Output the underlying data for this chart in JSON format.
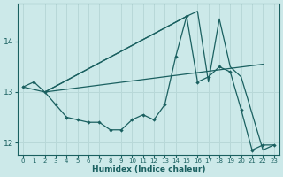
{
  "xlabel": "Humidex (Indice chaleur)",
  "background_color": "#cce9e9",
  "grid_color": "#b8d8d8",
  "line_color": "#1a6060",
  "xlim": [
    -0.5,
    23.5
  ],
  "ylim": [
    11.75,
    14.75
  ],
  "yticks": [
    12,
    13,
    14
  ],
  "xticks": [
    0,
    1,
    2,
    3,
    4,
    5,
    6,
    7,
    8,
    9,
    10,
    11,
    12,
    13,
    14,
    15,
    16,
    17,
    18,
    19,
    20,
    21,
    22,
    23
  ],
  "line1_x": [
    0,
    1,
    2,
    3,
    4,
    5,
    6,
    7,
    8,
    9,
    10,
    11,
    12,
    13,
    14,
    15,
    16,
    17,
    18,
    19,
    20,
    21,
    22,
    23
  ],
  "line1_y": [
    13.1,
    13.2,
    13.0,
    12.75,
    12.5,
    12.45,
    12.4,
    12.4,
    12.25,
    12.25,
    12.45,
    12.55,
    12.45,
    12.75,
    13.7,
    14.5,
    13.2,
    13.3,
    13.5,
    13.4,
    12.65,
    11.85,
    11.95,
    11.95
  ],
  "line2_x": [
    2,
    22
  ],
  "line2_y": [
    13.0,
    13.55
  ],
  "line3_x": [
    2,
    15
  ],
  "line3_y": [
    13.0,
    14.5
  ],
  "line4_x": [
    0,
    2,
    15,
    16,
    17,
    18,
    19,
    20,
    22,
    23
  ],
  "line4_y": [
    13.1,
    13.0,
    14.5,
    14.6,
    13.2,
    14.45,
    13.5,
    13.3,
    11.85,
    11.95
  ]
}
